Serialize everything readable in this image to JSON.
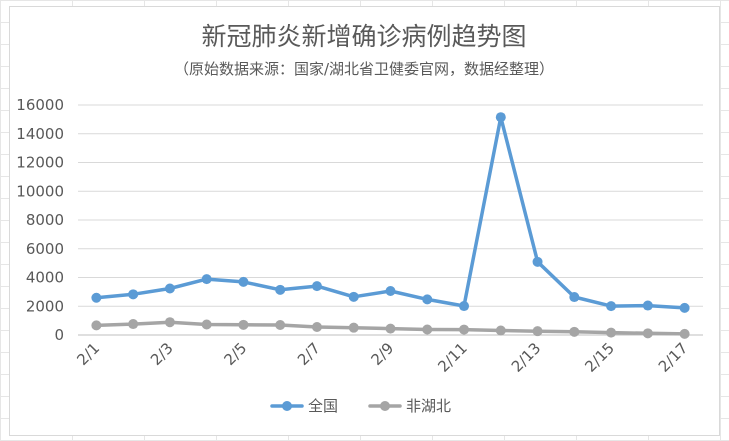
{
  "chart_data": {
    "type": "line",
    "title": "新冠肺炎新增确诊病例趋势图",
    "subtitle": "（原始数据来源：国家/湖北省卫健委官网，数据经整理）",
    "categories": [
      "2/1",
      "2/2",
      "2/3",
      "2/4",
      "2/5",
      "2/6",
      "2/7",
      "2/8",
      "2/9",
      "2/10",
      "2/11",
      "2/12",
      "2/13",
      "2/14",
      "2/15",
      "2/16",
      "2/17"
    ],
    "x_tick_labels": [
      "2/1",
      "2/3",
      "2/5",
      "2/7",
      "2/9",
      "2/11",
      "2/13",
      "2/15",
      "2/17"
    ],
    "ylim": [
      0,
      16000
    ],
    "y_ticks": [
      0,
      2000,
      4000,
      6000,
      8000,
      10000,
      12000,
      14000,
      16000
    ],
    "grid": true,
    "legend_position": "bottom",
    "series": [
      {
        "name": "全国",
        "color": "#5b9bd5",
        "values": [
          2590,
          2829,
          3235,
          3887,
          3694,
          3143,
          3399,
          2656,
          3062,
          2478,
          2015,
          15152,
          5090,
          2641,
          2009,
          2048,
          1886
        ]
      },
      {
        "name": "非湖北",
        "color": "#a5a5a5",
        "values": [
          669,
          761,
          890,
          731,
          707,
          696,
          558,
          509,
          444,
          381,
          377,
          312,
          267,
          221,
          166,
          115,
          79
        ]
      }
    ]
  }
}
